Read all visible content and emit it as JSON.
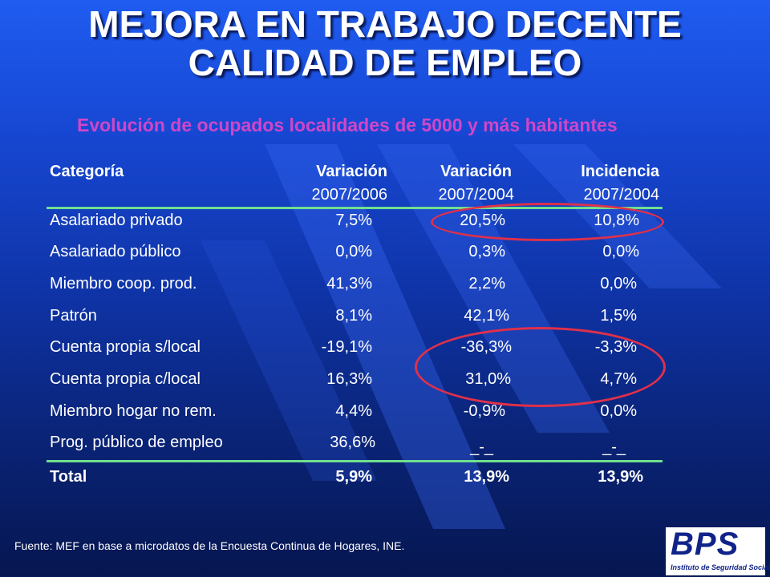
{
  "title": {
    "line1": "MEJORA EN TRABAJO DECENTE",
    "line2": "CALIDAD DE EMPLEO"
  },
  "subtitle": "Evolución de ocupados localidades de 5000 y más habitantes",
  "table": {
    "headers": [
      {
        "label": "Categoría",
        "sub": ""
      },
      {
        "label": "Variación",
        "sub": "2007/2006"
      },
      {
        "label": "Variación",
        "sub": "2007/2004"
      },
      {
        "label": "Incidencia",
        "sub": "2007/2004"
      }
    ],
    "rows": [
      {
        "category": "Asalariado privado",
        "var_2007_2006": "7,5%",
        "var_2007_2004": "20,5%",
        "incidencia": "10,8%"
      },
      {
        "category": "Asalariado público",
        "var_2007_2006": "0,0%",
        "var_2007_2004": "0,3%",
        "incidencia": "0,0%"
      },
      {
        "category": "Miembro coop. prod.",
        "var_2007_2006": "41,3%",
        "var_2007_2004": "2,2%",
        "incidencia": "0,0%"
      },
      {
        "category": "Patrón",
        "var_2007_2006": "8,1%",
        "var_2007_2004": "42,1%",
        "incidencia": "1,5%"
      },
      {
        "category": "Cuenta propia s/local",
        "var_2007_2006": "-19,1%",
        "var_2007_2004": "-36,3%",
        "incidencia": "-3,3%"
      },
      {
        "category": "Cuenta propia c/local",
        "var_2007_2006": "16,3%",
        "var_2007_2004": "31,0%",
        "incidencia": "4,7%"
      },
      {
        "category": "Miembro hogar no rem.",
        "var_2007_2006": "4,4%",
        "var_2007_2004": "-0,9%",
        "incidencia": "0,0%"
      },
      {
        "category": "Prog. público de empleo",
        "var_2007_2006": "36,6%",
        "var_2007_2004": "_-_",
        "incidencia": "_-_"
      }
    ],
    "total": {
      "category": "Total",
      "var_2007_2006": "5,9%",
      "var_2007_2004": "13,9%",
      "incidencia": "13,9%"
    }
  },
  "footer": "Fuente: MEF en base a microdatos de la Encuesta Continua de Hogares, INE.",
  "logo": {
    "text": "BPS",
    "subtitle": "Instituto de Seguridad Social"
  },
  "colors": {
    "subtitle": "#d046c8",
    "rule": "#6fe08f",
    "highlight": "#e0304a",
    "logo": "#10238a"
  }
}
